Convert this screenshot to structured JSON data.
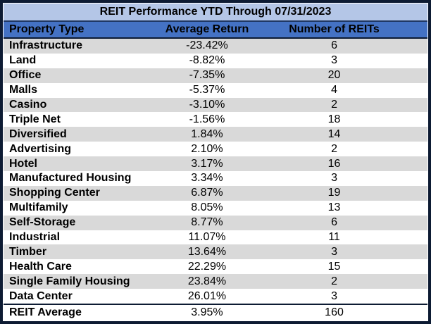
{
  "colors": {
    "title_bg": "#B4C6E7",
    "header_bg": "#4472C4",
    "stripe_bg": "#D9D9D9",
    "row_bg": "#FFFFFF",
    "border": "#0D1B33",
    "title_separator": "#1F3864",
    "text": "#000000"
  },
  "table": {
    "title": "REIT Performance YTD Through 07/31/2023",
    "headers": [
      "Property Type",
      "Average Return",
      "Number of REITs"
    ],
    "rows": [
      {
        "property_type": "Infrastructure",
        "average_return": "-23.42%",
        "number_of_reits": "6"
      },
      {
        "property_type": "Land",
        "average_return": "-8.82%",
        "number_of_reits": "3"
      },
      {
        "property_type": "Office",
        "average_return": "-7.35%",
        "number_of_reits": "20"
      },
      {
        "property_type": "Malls",
        "average_return": "-5.37%",
        "number_of_reits": "4"
      },
      {
        "property_type": "Casino",
        "average_return": "-3.10%",
        "number_of_reits": "2"
      },
      {
        "property_type": "Triple Net",
        "average_return": "-1.56%",
        "number_of_reits": "18"
      },
      {
        "property_type": "Diversified",
        "average_return": "1.84%",
        "number_of_reits": "14"
      },
      {
        "property_type": "Advertising",
        "average_return": "2.10%",
        "number_of_reits": "2"
      },
      {
        "property_type": "Hotel",
        "average_return": "3.17%",
        "number_of_reits": "16"
      },
      {
        "property_type": "Manufactured Housing",
        "average_return": "3.34%",
        "number_of_reits": "3"
      },
      {
        "property_type": "Shopping Center",
        "average_return": "6.87%",
        "number_of_reits": "19"
      },
      {
        "property_type": "Multifamily",
        "average_return": "8.05%",
        "number_of_reits": "13"
      },
      {
        "property_type": "Self-Storage",
        "average_return": "8.77%",
        "number_of_reits": "6"
      },
      {
        "property_type": "Industrial",
        "average_return": "11.07%",
        "number_of_reits": "11"
      },
      {
        "property_type": "Timber",
        "average_return": "13.64%",
        "number_of_reits": "3"
      },
      {
        "property_type": "Health Care",
        "average_return": "22.29%",
        "number_of_reits": "15"
      },
      {
        "property_type": "Single Family Housing",
        "average_return": "23.84%",
        "number_of_reits": "2"
      },
      {
        "property_type": "Data Center",
        "average_return": "26.01%",
        "number_of_reits": "3"
      }
    ],
    "footer": {
      "property_type": "REIT Average",
      "average_return": "3.95%",
      "number_of_reits": "160"
    }
  },
  "chart_data": {
    "type": "table",
    "title": "REIT Performance YTD Through 07/31/2023",
    "columns": [
      "Property Type",
      "Average Return",
      "Number of REITs"
    ],
    "rows": [
      [
        "Infrastructure",
        -23.42,
        6
      ],
      [
        "Land",
        -8.82,
        3
      ],
      [
        "Office",
        -7.35,
        20
      ],
      [
        "Malls",
        -5.37,
        4
      ],
      [
        "Casino",
        -3.1,
        2
      ],
      [
        "Triple Net",
        -1.56,
        18
      ],
      [
        "Diversified",
        1.84,
        14
      ],
      [
        "Advertising",
        2.1,
        2
      ],
      [
        "Hotel",
        3.17,
        16
      ],
      [
        "Manufactured Housing",
        3.34,
        3
      ],
      [
        "Shopping Center",
        6.87,
        19
      ],
      [
        "Multifamily",
        8.05,
        13
      ],
      [
        "Self-Storage",
        8.77,
        6
      ],
      [
        "Industrial",
        11.07,
        11
      ],
      [
        "Timber",
        13.64,
        3
      ],
      [
        "Health Care",
        22.29,
        15
      ],
      [
        "Single Family Housing",
        23.84,
        2
      ],
      [
        "Data Center",
        26.01,
        3
      ],
      [
        "REIT Average",
        3.95,
        160
      ]
    ],
    "units": {
      "Average Return": "percent"
    },
    "notes": "Average Return values in percent; bottom row is summary total/average"
  }
}
